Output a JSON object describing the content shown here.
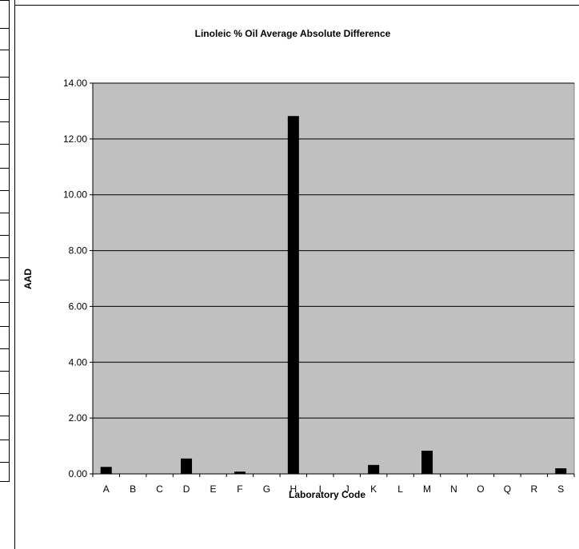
{
  "chart_data": {
    "type": "bar",
    "title": "Linoleic % Oil Average Absolute Difference",
    "xlabel": "Laboratory Code",
    "ylabel": "AAD",
    "categories": [
      "A",
      "B",
      "C",
      "D",
      "E",
      "F",
      "G",
      "H",
      "I",
      "J",
      "K",
      "L",
      "M",
      "N",
      "O",
      "Q",
      "R",
      "S"
    ],
    "values": [
      0.25,
      0,
      0,
      0.55,
      0,
      0.08,
      0,
      12.82,
      0,
      0,
      0.32,
      0,
      0.83,
      0,
      0,
      0,
      0,
      0.2
    ],
    "ylim": [
      0,
      14
    ],
    "yticks": [
      "0.00",
      "2.00",
      "4.00",
      "6.00",
      "8.00",
      "10.00",
      "12.00",
      "14.00"
    ],
    "grid": true,
    "legend": "none",
    "colors": {
      "plot_background": "#c0c0c0",
      "bar": "#000000",
      "gridline": "#000000"
    }
  }
}
